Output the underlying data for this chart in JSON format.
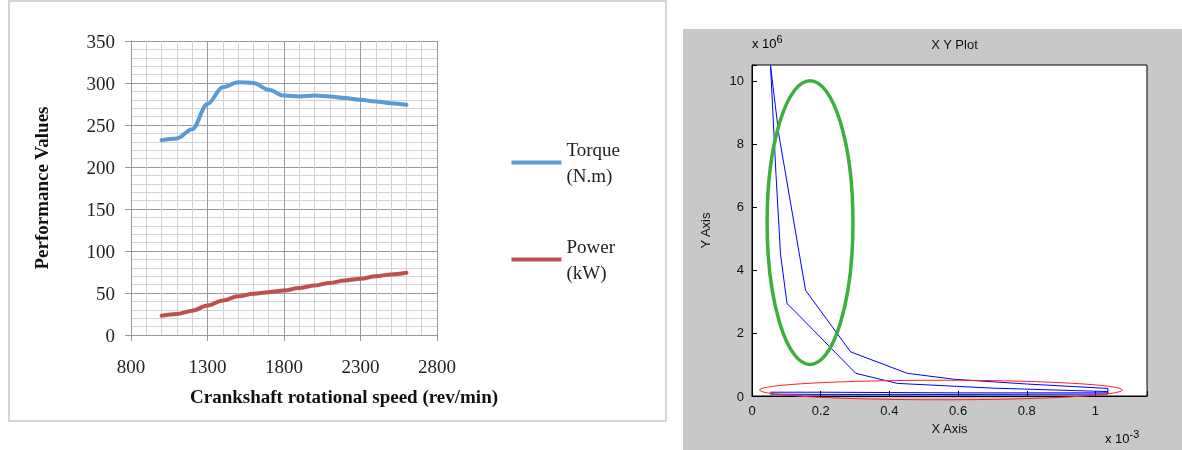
{
  "chart_data": [
    {
      "type": "line",
      "xlabel": "Crankshaft rotational speed (rev/min)",
      "ylabel": "Performance Values",
      "x": [
        1000,
        1100,
        1200,
        1300,
        1400,
        1500,
        1600,
        1700,
        1800,
        1900,
        2000,
        2100,
        2200,
        2300,
        2400,
        2500,
        2600
      ],
      "series": [
        {
          "name": "Torque (N.m)",
          "color": "#5b9bd5",
          "values": [
            232,
            234,
            245,
            275,
            295,
            301,
            300,
            292,
            285,
            284,
            285,
            284,
            282,
            280,
            278,
            276,
            274
          ]
        },
        {
          "name": "Power (kW)",
          "color": "#c0504d",
          "values": [
            23,
            25,
            29,
            35,
            41,
            46,
            49,
            51,
            53,
            56,
            59,
            62,
            65,
            67,
            70,
            72,
            74
          ]
        }
      ],
      "xlim": [
        800,
        2800
      ],
      "xticks": [
        800,
        1300,
        1800,
        2300,
        2800
      ],
      "ylim": [
        0,
        350
      ],
      "yticks": [
        0,
        50,
        100,
        150,
        200,
        250,
        300,
        350
      ],
      "grid": true,
      "legend": "right",
      "marker": "none"
    },
    {
      "type": "line",
      "title": "X Y Plot",
      "xlabel": "X Axis",
      "ylabel": "Y Axis",
      "series": [
        {
          "color": "#0000ff",
          "x": [
            0.054,
            0.078,
            0.156,
            0.287,
            0.452,
            0.589,
            0.8,
            1.036,
            1.036,
            0.6,
            0.2,
            0.054
          ],
          "values": [
            10.47,
            8.3,
            3.35,
            1.4,
            0.72,
            0.53,
            0.38,
            0.24,
            0.06,
            0.05,
            0.05,
            0.06
          ]
        },
        {
          "color": "#0000ff",
          "x": [
            0.054,
            0.07,
            0.083,
            0.102,
            0.122,
            0.302,
            0.423,
            0.7,
            1.036,
            1.036,
            0.6,
            0.2,
            0.054
          ],
          "values": [
            10.47,
            7,
            4.5,
            2.93,
            2.72,
            0.72,
            0.4,
            0.25,
            0.14,
            0.1,
            0.1,
            0.12,
            0.12
          ]
        }
      ],
      "xlim": [
        0,
        1.15
      ],
      "xticks": [
        0,
        0.2,
        0.4,
        0.6,
        0.8,
        1
      ],
      "ylim": [
        0,
        10.5
      ],
      "yticks": [
        0,
        2,
        4,
        6,
        8,
        10
      ],
      "annotations": [
        "x 10$^{6}$",
        "x 10$^{-3}$"
      ],
      "marker": "none"
    }
  ]
}
